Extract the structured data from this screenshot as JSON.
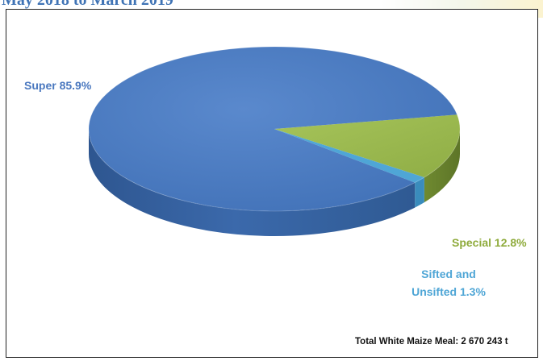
{
  "header": {
    "title": "May 2018 to March 2019"
  },
  "chart_data": {
    "type": "pie",
    "slices": [
      {
        "label": "Super",
        "value": 85.9,
        "display": "Super  85.9%",
        "color": "#4a78bf"
      },
      {
        "label": "Special",
        "value": 12.8,
        "display": "Special  12.8%",
        "color": "#9bba4f"
      },
      {
        "label": "Sifted and Unsifted",
        "value": 1.3,
        "display_lines": [
          "Sifted and",
          "Unsifted 1.3%"
        ],
        "color": "#4fa6d6"
      }
    ],
    "annotation": "Total White Maize Meal: 2 670 243 t",
    "style": "3d"
  }
}
